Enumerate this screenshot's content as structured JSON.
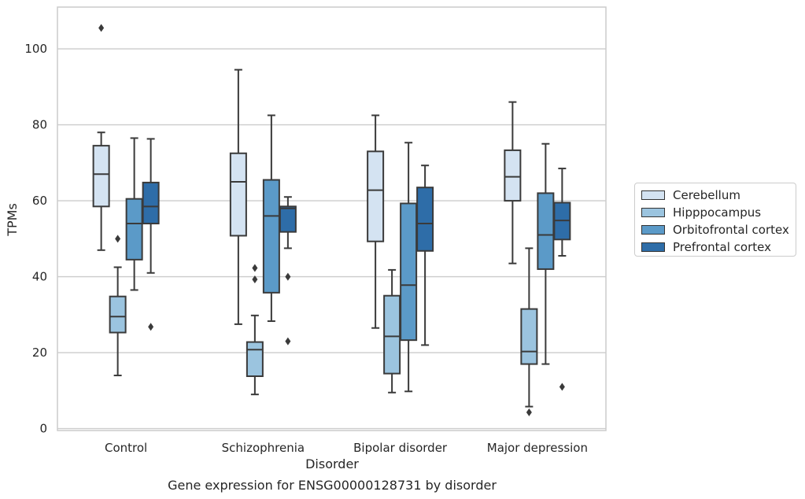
{
  "chart_data": {
    "type": "box",
    "title": "",
    "caption": "Gene expression for ENSG00000128731 by disorder",
    "xlabel": "Disorder",
    "ylabel": "TPMs",
    "ylim": [
      -0.5,
      111
    ],
    "yticks": [
      0,
      20,
      40,
      60,
      80,
      100
    ],
    "grid": "horizontal",
    "legend_position": "right",
    "categories": [
      "Control",
      "Schizophrenia",
      "Bipolar disorder",
      "Major depression"
    ],
    "series": [
      {
        "name": "Cerebellum",
        "color": "#d4e3f2",
        "boxes": [
          {
            "whisker_low": 47,
            "q1": 58.5,
            "median": 67,
            "q3": 74.5,
            "whisker_high": 78,
            "outliers": [
              105.5
            ]
          },
          {
            "whisker_low": 27.5,
            "q1": 50.8,
            "median": 65,
            "q3": 72.5,
            "whisker_high": 94.5,
            "outliers": []
          },
          {
            "whisker_low": 26.5,
            "q1": 49.3,
            "median": 62.8,
            "q3": 73,
            "whisker_high": 82.5,
            "outliers": []
          },
          {
            "whisker_low": 43.5,
            "q1": 60,
            "median": 66.3,
            "q3": 73.3,
            "whisker_high": 86,
            "outliers": []
          }
        ]
      },
      {
        "name": "Hipppocampus",
        "color": "#9bc4df",
        "boxes": [
          {
            "whisker_low": 14,
            "q1": 25.3,
            "median": 29.5,
            "q3": 34.8,
            "whisker_high": 42.5,
            "outliers": [
              50
            ]
          },
          {
            "whisker_low": 9,
            "q1": 13.8,
            "median": 20.8,
            "q3": 22.8,
            "whisker_high": 29.8,
            "outliers": [
              42.3,
              39.3
            ]
          },
          {
            "whisker_low": 9.5,
            "q1": 14.5,
            "median": 24.3,
            "q3": 35,
            "whisker_high": 41.8,
            "outliers": []
          },
          {
            "whisker_low": 5.8,
            "q1": 17,
            "median": 20.3,
            "q3": 31.5,
            "whisker_high": 47.5,
            "outliers": [
              4.3
            ]
          }
        ]
      },
      {
        "name": "Orbitofrontal cortex",
        "color": "#5b9ac8",
        "boxes": [
          {
            "whisker_low": 36.5,
            "q1": 44.5,
            "median": 54,
            "q3": 60.5,
            "whisker_high": 76.5,
            "outliers": []
          },
          {
            "whisker_low": 28.3,
            "q1": 35.8,
            "median": 56,
            "q3": 65.5,
            "whisker_high": 82.5,
            "outliers": []
          },
          {
            "whisker_low": 9.8,
            "q1": 23.3,
            "median": 37.8,
            "q3": 59.3,
            "whisker_high": 75.3,
            "outliers": []
          },
          {
            "whisker_low": 17,
            "q1": 42,
            "median": 51,
            "q3": 62,
            "whisker_high": 75,
            "outliers": []
          }
        ]
      },
      {
        "name": "Prefrontal cortex",
        "color": "#2e6da8",
        "boxes": [
          {
            "whisker_low": 41,
            "q1": 54,
            "median": 58.5,
            "q3": 64.8,
            "whisker_high": 76.3,
            "outliers": [
              26.8
            ]
          },
          {
            "whisker_low": 47.5,
            "q1": 51.8,
            "median": 58,
            "q3": 58.5,
            "whisker_high": 61,
            "outliers": [
              40,
              23
            ]
          },
          {
            "whisker_low": 22,
            "q1": 46.8,
            "median": 54,
            "q3": 63.5,
            "whisker_high": 69.3,
            "outliers": []
          },
          {
            "whisker_low": 45.5,
            "q1": 49.8,
            "median": 54.8,
            "q3": 59.5,
            "whisker_high": 68.5,
            "outliers": [
              11
            ]
          }
        ]
      }
    ]
  }
}
